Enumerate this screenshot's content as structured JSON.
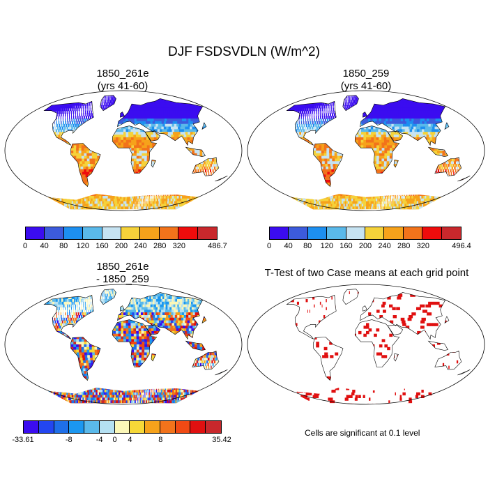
{
  "title": "DJF FSDSVDLN (W/m^2)",
  "panels": [
    {
      "title_line1": "1850_261e",
      "title_line2": "(yrs 41-60)"
    },
    {
      "title_line1": "1850_259",
      "title_line2": "(yrs 41-60)"
    },
    {
      "title_line1": "1850_261e",
      "title_line2": "- 1850_259"
    },
    {
      "title_line1": "T-Test of two Case means at each grid point",
      "title_line2": ""
    }
  ],
  "colorbars": {
    "abs1": {
      "colors": [
        "#3b0cf0",
        "#3c5bdc",
        "#1d8ff0",
        "#5ab9ea",
        "#c6e3f2",
        "#f5d23a",
        "#f6a21b",
        "#f2731b",
        "#ee0c0c",
        "#c8282c"
      ],
      "labels": [
        "0",
        "40",
        "80",
        "120",
        "160",
        "200",
        "240",
        "280",
        "320",
        "486.7"
      ]
    },
    "abs2": {
      "colors": [
        "#3b0cf0",
        "#3c5bdc",
        "#1d8ff0",
        "#5ab9ea",
        "#c6e3f2",
        "#f5d23a",
        "#f6a21b",
        "#f2731b",
        "#ee0c0c",
        "#c8282c"
      ],
      "labels": [
        "0",
        "40",
        "80",
        "120",
        "160",
        "200",
        "240",
        "280",
        "320",
        "496.4"
      ]
    },
    "diff": {
      "colors": [
        "#3b0cf0",
        "#2346f0",
        "#1f6fe8",
        "#1b97f0",
        "#5ab9ea",
        "#b4e0f2",
        "#fbf7b8",
        "#f6d838",
        "#f6a21b",
        "#f2731b",
        "#f04a14",
        "#e01010",
        "#c8282c"
      ],
      "labels": [
        "-33.61",
        "-8",
        "-4",
        "0",
        "4",
        "8",
        "35.42"
      ]
    }
  },
  "note": "Cells are significant at 0.1 level",
  "icons": {
    "map": "world-map-robinson"
  }
}
